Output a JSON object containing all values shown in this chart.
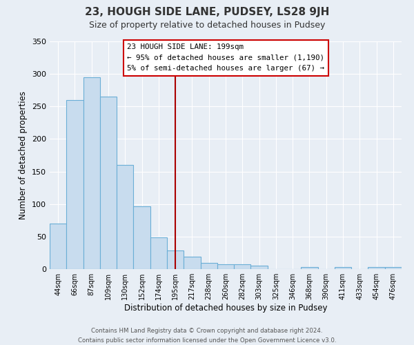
{
  "title": "23, HOUGH SIDE LANE, PUDSEY, LS28 9JH",
  "subtitle": "Size of property relative to detached houses in Pudsey",
  "xlabel": "Distribution of detached houses by size in Pudsey",
  "ylabel": "Number of detached properties",
  "bar_labels": [
    "44sqm",
    "66sqm",
    "87sqm",
    "109sqm",
    "130sqm",
    "152sqm",
    "174sqm",
    "195sqm",
    "217sqm",
    "238sqm",
    "260sqm",
    "282sqm",
    "303sqm",
    "325sqm",
    "346sqm",
    "368sqm",
    "390sqm",
    "411sqm",
    "433sqm",
    "454sqm",
    "476sqm"
  ],
  "bar_values": [
    70,
    260,
    295,
    265,
    160,
    97,
    49,
    29,
    19,
    10,
    7,
    7,
    5,
    0,
    0,
    3,
    0,
    3,
    0,
    3,
    3
  ],
  "bar_color": "#c8dcee",
  "bar_edge_color": "#6aaed6",
  "vline_x_index": 7,
  "vline_color": "#aa0000",
  "ylim": [
    0,
    350
  ],
  "yticks": [
    0,
    50,
    100,
    150,
    200,
    250,
    300,
    350
  ],
  "annotation_line1": "23 HOUGH SIDE LANE: 199sqm",
  "annotation_line2": "← 95% of detached houses are smaller (1,190)",
  "annotation_line3": "5% of semi-detached houses are larger (67) →",
  "annotation_box_color": "#ffffff",
  "annotation_box_edge": "#cc0000",
  "footer_line1": "Contains HM Land Registry data © Crown copyright and database right 2024.",
  "footer_line2": "Contains public sector information licensed under the Open Government Licence v3.0.",
  "background_color": "#e8eef5",
  "plot_bg_color": "#e8eef5",
  "grid_color": "#ffffff",
  "title_color": "#333333",
  "subtitle_color": "#333333",
  "footer_color": "#555555"
}
